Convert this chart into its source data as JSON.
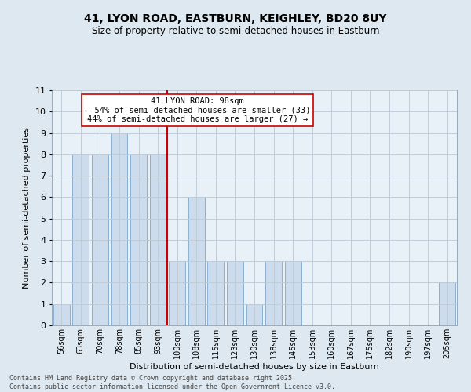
{
  "title_line1": "41, LYON ROAD, EASTBURN, KEIGHLEY, BD20 8UY",
  "title_line2": "Size of property relative to semi-detached houses in Eastburn",
  "xlabel": "Distribution of semi-detached houses by size in Eastburn",
  "ylabel": "Number of semi-detached properties",
  "categories": [
    "56sqm",
    "63sqm",
    "70sqm",
    "78sqm",
    "85sqm",
    "93sqm",
    "100sqm",
    "108sqm",
    "115sqm",
    "123sqm",
    "130sqm",
    "138sqm",
    "145sqm",
    "153sqm",
    "160sqm",
    "167sqm",
    "175sqm",
    "182sqm",
    "190sqm",
    "197sqm",
    "205sqm"
  ],
  "values": [
    1,
    8,
    8,
    9,
    8,
    8,
    3,
    6,
    3,
    3,
    1,
    3,
    3,
    0,
    0,
    0,
    0,
    0,
    0,
    0,
    2
  ],
  "bar_color": "#ccdcec",
  "bar_edge_color": "#8ab0d0",
  "vline_color": "#cc0000",
  "annotation_text": "41 LYON ROAD: 98sqm\n← 54% of semi-detached houses are smaller (33)\n44% of semi-detached houses are larger (27) →",
  "annotation_box_facecolor": "white",
  "annotation_box_edgecolor": "#cc0000",
  "ylim": [
    0,
    11
  ],
  "yticks": [
    0,
    1,
    2,
    3,
    4,
    5,
    6,
    7,
    8,
    9,
    10,
    11
  ],
  "footnote": "Contains HM Land Registry data © Crown copyright and database right 2025.\nContains public sector information licensed under the Open Government Licence v3.0.",
  "bg_color": "#dde8f0",
  "plot_bg_color": "#e8f0f8",
  "grid_color": "#c0ccd8"
}
